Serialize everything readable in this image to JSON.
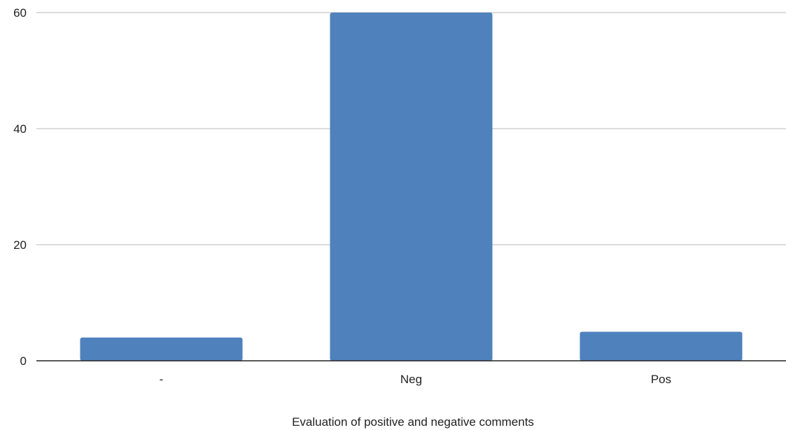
{
  "chart_data": {
    "type": "bar",
    "title": "",
    "xlabel": "Evaluation of positive and negative comments",
    "ylabel": "",
    "categories": [
      "-",
      "Neg",
      "Pos"
    ],
    "values": [
      4,
      60,
      5
    ],
    "ylim": [
      0,
      60
    ],
    "yticks": [
      0,
      20,
      40,
      60
    ],
    "grid": true,
    "bar_color": "#4f81bd",
    "grid_color": "#c8c8c8",
    "axis_color": "#222222"
  }
}
